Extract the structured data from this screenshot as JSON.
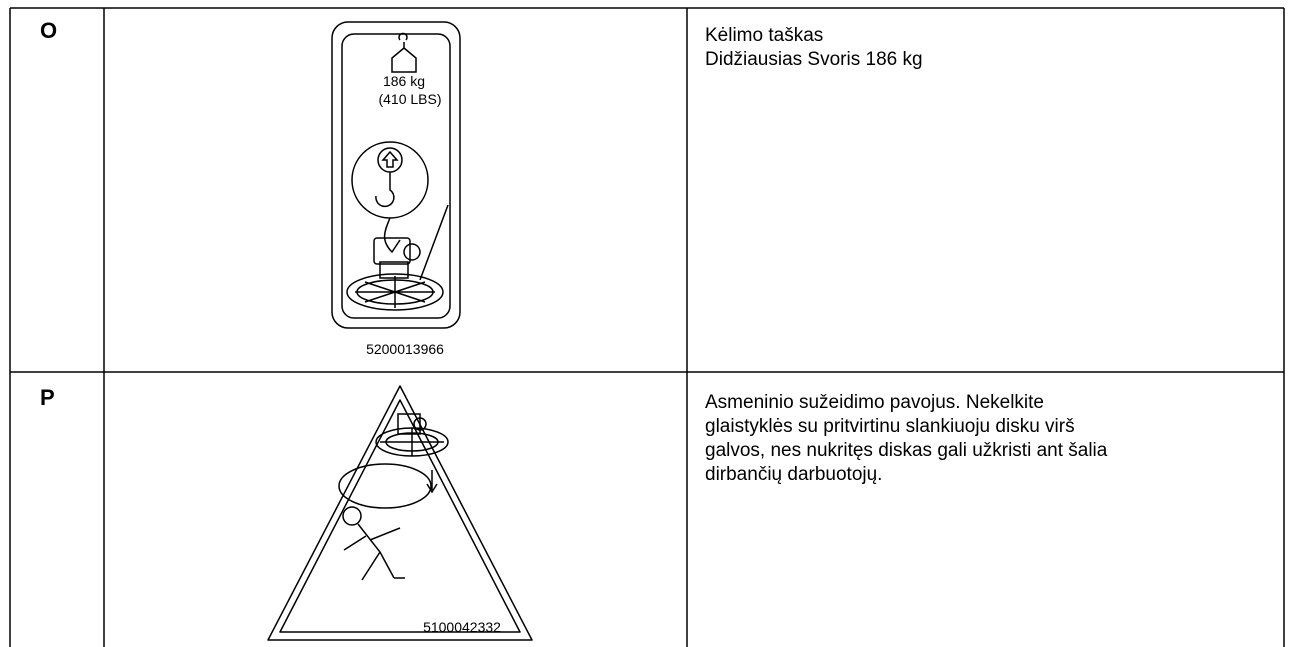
{
  "table": {
    "rows": [
      {
        "id": "O",
        "image": {
          "weight": "186 kg",
          "weight_lbs": "(410 LBS)",
          "part_number": "5200013966"
        },
        "description": [
          "Kėlimo taškas",
          "Didžiausias Svoris 186 kg"
        ]
      },
      {
        "id": "P",
        "image": {
          "part_number": "5100042332"
        },
        "description": [
          "Asmeninio sužeidimo pavojus. Nekelkite",
          "glaistyklės su pritvirtinu slankiuoju disku virš",
          "galvos, nes nukritęs diskas gali užkristi ant šalia",
          "dirbančių darbuotojų."
        ]
      }
    ]
  }
}
